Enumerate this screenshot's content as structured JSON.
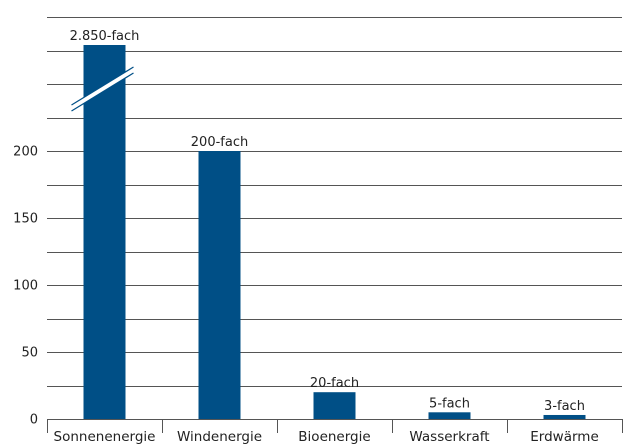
{
  "chart_data": {
    "type": "bar",
    "title": "",
    "xlabel": "",
    "ylabel": "",
    "categories": [
      "Sonnenenergie",
      "Windenergie",
      "Bioenergie",
      "Wasserkraft",
      "Erdwärme"
    ],
    "values": [
      2850,
      200,
      20,
      5,
      3
    ],
    "data_labels": [
      "2.850-fach",
      "200-fach",
      "20-fach",
      "5-fach",
      "3-fach"
    ],
    "y_ticks": [
      0,
      50,
      100,
      150,
      200
    ],
    "ylim": [
      0,
      275
    ],
    "grid": true,
    "axis_break": {
      "category": "Sonnenenergie",
      "present": true
    },
    "colors": {
      "bar": "#004f86",
      "grid": "#555555",
      "text": "#222222",
      "background": "#ffffff"
    }
  }
}
